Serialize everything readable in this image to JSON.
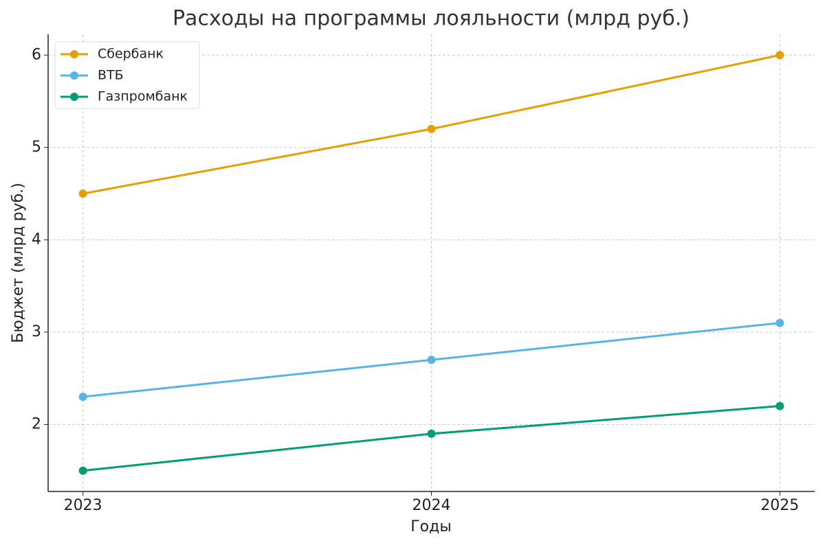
{
  "chart_data": {
    "type": "line",
    "title": "Расходы на программы лояльности (млрд руб.)",
    "x_label": "Годы",
    "y_label": "Бюджет (млрд руб.)",
    "x": [
      2023,
      2024,
      2025
    ],
    "series": [
      {
        "name": "Сбербанк",
        "color": "#E69F00",
        "values": [
          4.5,
          5.2,
          6.0
        ]
      },
      {
        "name": "ВТБ",
        "color": "#56B4E9",
        "values": [
          2.3,
          2.7,
          3.1
        ]
      },
      {
        "name": "Газпромбанк",
        "color": "#009E73",
        "values": [
          1.5,
          1.9,
          2.2
        ]
      }
    ],
    "xlim": [
      2022.9,
      2025.1
    ],
    "xticks": [
      2023,
      2024,
      2025
    ],
    "ylim": [
      1.275,
      6.225
    ],
    "yticks": [
      2,
      3,
      4,
      5,
      6
    ],
    "grid": true,
    "legend": "upper left"
  }
}
